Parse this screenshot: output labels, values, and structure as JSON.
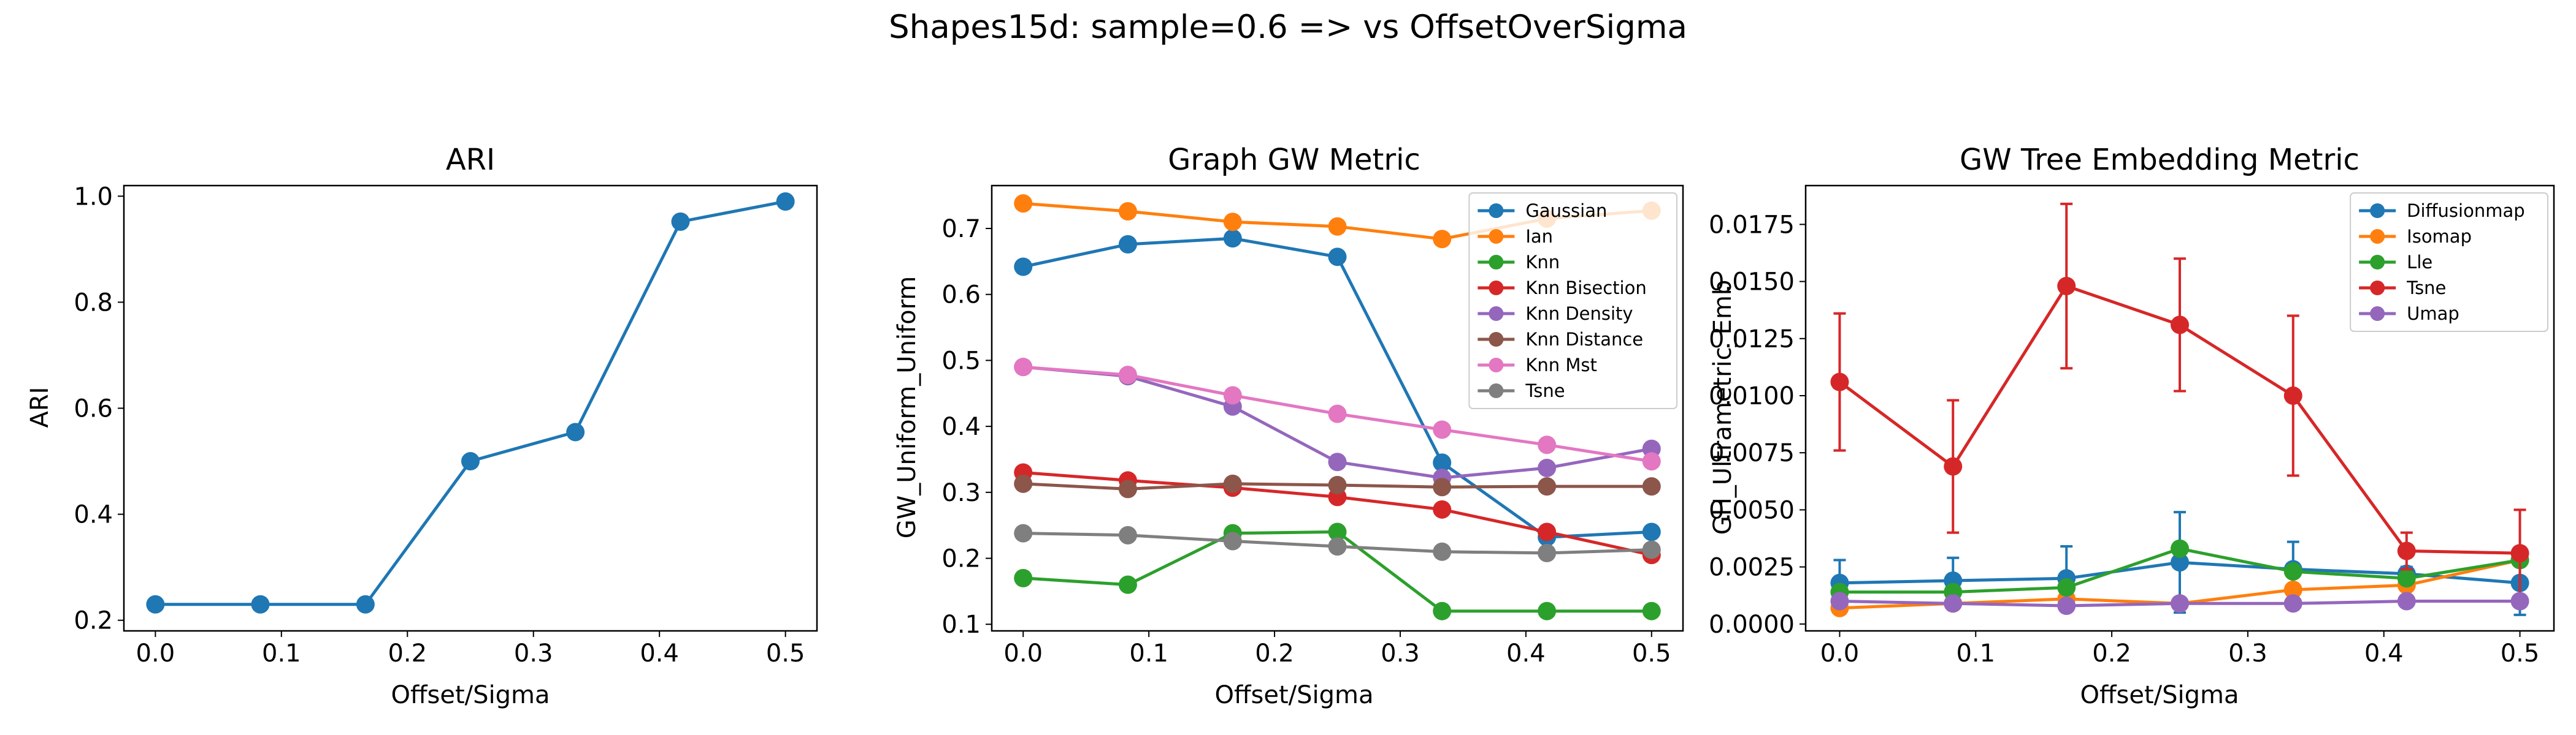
{
  "figure": {
    "suptitle": "Shapes15d: sample=0.6 => vs OffsetOverSigma"
  },
  "chart_data": [
    {
      "type": "line",
      "title": "ARI",
      "xlabel": "Offset/Sigma",
      "ylabel": "ARI",
      "xlim": [
        -0.025,
        0.525
      ],
      "ylim": [
        0.18,
        1.02
      ],
      "xticks": [
        0.0,
        0.1,
        0.2,
        0.3,
        0.4,
        0.5
      ],
      "xtick_labels": [
        "0.0",
        "0.1",
        "0.2",
        "0.3",
        "0.4",
        "0.5"
      ],
      "yticks": [
        0.2,
        0.4,
        0.6,
        0.8,
        1.0
      ],
      "ytick_labels": [
        "0.2",
        "0.4",
        "0.6",
        "0.8",
        "1.0"
      ],
      "x": [
        0.0,
        0.0833,
        0.1667,
        0.25,
        0.3333,
        0.4167,
        0.5
      ],
      "series": [
        {
          "color": "#1f77b4",
          "values": [
            0.23,
            0.23,
            0.23,
            0.5,
            0.555,
            0.952,
            0.99
          ]
        }
      ]
    },
    {
      "type": "line",
      "title": "Graph GW Metric",
      "xlabel": "Offset/Sigma",
      "ylabel": "GW_Uniform_Uniform",
      "xlim": [
        -0.025,
        0.525
      ],
      "ylim": [
        0.09,
        0.765
      ],
      "xticks": [
        0.0,
        0.1,
        0.2,
        0.3,
        0.4,
        0.5
      ],
      "xtick_labels": [
        "0.0",
        "0.1",
        "0.2",
        "0.3",
        "0.4",
        "0.5"
      ],
      "yticks": [
        0.1,
        0.2,
        0.3,
        0.4,
        0.5,
        0.6,
        0.7
      ],
      "ytick_labels": [
        "0.1",
        "0.2",
        "0.3",
        "0.4",
        "0.5",
        "0.6",
        "0.7"
      ],
      "legend": "top-right",
      "x": [
        0.0,
        0.0833,
        0.1667,
        0.25,
        0.3333,
        0.4167,
        0.5
      ],
      "series": [
        {
          "name": "Gaussian",
          "color": "#1f77b4",
          "values": [
            0.642,
            0.676,
            0.685,
            0.657,
            0.345,
            0.232,
            0.24
          ]
        },
        {
          "name": "Ian",
          "color": "#ff7f0e",
          "values": [
            0.738,
            0.726,
            0.71,
            0.703,
            0.684,
            0.715,
            0.727
          ]
        },
        {
          "name": "Knn",
          "color": "#2ca02c",
          "values": [
            0.17,
            0.16,
            0.238,
            0.24,
            0.12,
            0.12,
            0.12
          ]
        },
        {
          "name": "Knn Bisection",
          "color": "#d62728",
          "values": [
            0.33,
            0.318,
            0.307,
            0.293,
            0.274,
            0.24,
            0.205
          ]
        },
        {
          "name": "Knn Density",
          "color": "#9467bd",
          "values": [
            0.49,
            0.476,
            0.43,
            0.346,
            0.322,
            0.337,
            0.366
          ]
        },
        {
          "name": "Knn Distance",
          "color": "#8c564b",
          "values": [
            0.313,
            0.305,
            0.313,
            0.311,
            0.308,
            0.309,
            0.309
          ]
        },
        {
          "name": "Knn Mst",
          "color": "#e377c2",
          "values": [
            0.49,
            0.478,
            0.447,
            0.419,
            0.395,
            0.372,
            0.347
          ]
        },
        {
          "name": "Tsne",
          "color": "#7f7f7f",
          "values": [
            0.238,
            0.235,
            0.226,
            0.218,
            0.21,
            0.208,
            0.213
          ]
        }
      ]
    },
    {
      "type": "line",
      "title": "GW Tree Embedding Metric",
      "xlabel": "Offset/Sigma",
      "ylabel": "GH_Ultrametric_Emb",
      "xlim": [
        -0.025,
        0.525
      ],
      "ylim": [
        -0.0003,
        0.0192
      ],
      "xticks": [
        0.0,
        0.1,
        0.2,
        0.3,
        0.4,
        0.5
      ],
      "xtick_labels": [
        "0.0",
        "0.1",
        "0.2",
        "0.3",
        "0.4",
        "0.5"
      ],
      "yticks": [
        0.0,
        0.0025,
        0.005,
        0.0075,
        0.01,
        0.0125,
        0.015,
        0.0175
      ],
      "ytick_labels": [
        "0.0000",
        "0.0025",
        "0.0050",
        "0.0075",
        "0.0100",
        "0.0125",
        "0.0150",
        "0.0175"
      ],
      "legend": "top-right",
      "x": [
        0.0,
        0.0833,
        0.1667,
        0.25,
        0.3333,
        0.4167,
        0.5
      ],
      "series": [
        {
          "name": "Diffusionmap",
          "color": "#1f77b4",
          "values": [
            0.0018,
            0.0019,
            0.002,
            0.0027,
            0.0024,
            0.0022,
            0.0018
          ],
          "err": [
            0.001,
            0.001,
            0.0014,
            0.0022,
            0.0012,
            0.0003,
            0.0014
          ]
        },
        {
          "name": "Isomap",
          "color": "#ff7f0e",
          "values": [
            0.0007,
            0.0009,
            0.0011,
            0.0009,
            0.0015,
            0.0017,
            0.0028
          ],
          "err": [
            0,
            0,
            0,
            0,
            0,
            0,
            0
          ]
        },
        {
          "name": "Lle",
          "color": "#2ca02c",
          "values": [
            0.0014,
            0.0014,
            0.0016,
            0.0033,
            0.0023,
            0.002,
            0.0028
          ],
          "err": [
            0,
            0,
            0,
            0,
            0,
            0,
            0
          ]
        },
        {
          "name": "Tsne",
          "color": "#d62728",
          "values": [
            0.0106,
            0.0069,
            0.0148,
            0.0131,
            0.01,
            0.0032,
            0.0031
          ],
          "err": [
            0.003,
            0.0029,
            0.0036,
            0.0029,
            0.0035,
            0.0008,
            0.0019
          ]
        },
        {
          "name": "Umap",
          "color": "#9467bd",
          "values": [
            0.001,
            0.0009,
            0.0008,
            0.0009,
            0.0009,
            0.001,
            0.001
          ],
          "err": [
            0,
            0,
            0,
            0,
            0,
            0,
            0
          ]
        }
      ]
    }
  ]
}
